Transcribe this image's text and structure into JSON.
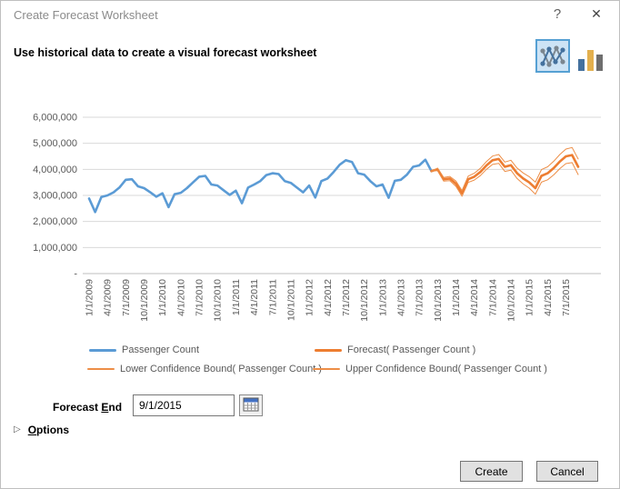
{
  "window": {
    "title": "Create Forecast Worksheet",
    "help_glyph": "?",
    "close_glyph": "✕"
  },
  "header": {
    "subtitle": "Use historical data to create a visual forecast worksheet"
  },
  "chart_type_picker": {
    "selected": "line-chart",
    "options": [
      "line-chart",
      "bar-chart"
    ]
  },
  "chart_data": {
    "type": "line",
    "title": "",
    "xlabel": "",
    "ylabel": "",
    "x_start": "1/1/2009",
    "x_end": "9/1/2015",
    "points_frequency": "monthly",
    "grid": true,
    "legend_position": "bottom",
    "ylim": [
      0,
      6000000
    ],
    "y_ticks": [
      {
        "value": 6000000,
        "label": "6,000,000"
      },
      {
        "value": 5000000,
        "label": "5,000,000"
      },
      {
        "value": 4000000,
        "label": "4,000,000"
      },
      {
        "value": 3000000,
        "label": "3,000,000"
      },
      {
        "value": 2000000,
        "label": "2,000,000"
      },
      {
        "value": 1000000,
        "label": "1,000,000"
      },
      {
        "value": 0,
        "label": "-"
      }
    ],
    "x_tick_labels": [
      "1/1/2009",
      "4/1/2009",
      "7/1/2009",
      "10/1/2009",
      "1/1/2010",
      "4/1/2010",
      "7/1/2010",
      "10/1/2010",
      "1/1/2011",
      "4/1/2011",
      "7/1/2011",
      "10/1/2011",
      "1/1/2012",
      "4/1/2012",
      "7/1/2012",
      "10/1/2012",
      "1/1/2013",
      "4/1/2013",
      "7/1/2013",
      "10/1/2013",
      "1/1/2014",
      "4/1/2014",
      "7/1/2014",
      "10/1/2014",
      "1/1/2015",
      "4/1/2015",
      "7/1/2015"
    ],
    "x_tick_month_step": 3,
    "series": [
      {
        "name": "Passenger Count",
        "color": "#5B9BD5",
        "line_width": 2.6,
        "start_month_index": 0,
        "values": [
          2880000,
          2360000,
          2940000,
          3000000,
          3120000,
          3310000,
          3600000,
          3620000,
          3350000,
          3280000,
          3120000,
          2950000,
          3080000,
          2550000,
          3050000,
          3100000,
          3280000,
          3500000,
          3720000,
          3750000,
          3420000,
          3380000,
          3200000,
          3020000,
          3180000,
          2700000,
          3300000,
          3420000,
          3550000,
          3780000,
          3850000,
          3820000,
          3550000,
          3480000,
          3300000,
          3120000,
          3380000,
          2920000,
          3550000,
          3650000,
          3900000,
          4180000,
          4350000,
          4280000,
          3850000,
          3800000,
          3550000,
          3350000,
          3420000,
          2910000,
          3560000,
          3600000,
          3800000,
          4100000,
          4150000,
          4370000,
          3930000
        ]
      },
      {
        "name": "Forecast( Passenger Count )",
        "color": "#ED7D31",
        "line_width": 2.6,
        "start_month_index": 56,
        "values": [
          3930000,
          4000000,
          3620000,
          3650000,
          3450000,
          3080000,
          3620000,
          3720000,
          3900000,
          4150000,
          4350000,
          4400000,
          4100000,
          4160000,
          3850000,
          3650000,
          3500000,
          3280000,
          3750000,
          3850000,
          4050000,
          4300000,
          4500000,
          4550000,
          4100000
        ]
      },
      {
        "name": "Lower Confidence Bound( Passenger Count )",
        "color": "#ED8E47",
        "line_width": 1,
        "start_month_index": 56,
        "values": [
          3930000,
          3950000,
          3550000,
          3570000,
          3350000,
          2970000,
          3500000,
          3590000,
          3760000,
          4000000,
          4190000,
          4230000,
          3920000,
          3970000,
          3650000,
          3440000,
          3280000,
          3050000,
          3510000,
          3600000,
          3790000,
          4030000,
          4220000,
          4260000,
          3800000
        ]
      },
      {
        "name": "Upper Confidence Bound( Passenger Count )",
        "color": "#ED8E47",
        "line_width": 1,
        "start_month_index": 56,
        "values": [
          3930000,
          4050000,
          3690000,
          3730000,
          3550000,
          3190000,
          3740000,
          3850000,
          4040000,
          4300000,
          4510000,
          4570000,
          4280000,
          4350000,
          4050000,
          3860000,
          3720000,
          3510000,
          3990000,
          4100000,
          4310000,
          4570000,
          4780000,
          4840000,
          4400000
        ]
      }
    ]
  },
  "forecast_end": {
    "label_pre": "Forecast ",
    "label_key": "E",
    "label_post": "nd",
    "value": "9/1/2015"
  },
  "options": {
    "expander_glyph": "▷",
    "label_key": "O",
    "label_rest": "ptions"
  },
  "footer": {
    "create_label": "Create",
    "cancel_label": "Cancel"
  }
}
